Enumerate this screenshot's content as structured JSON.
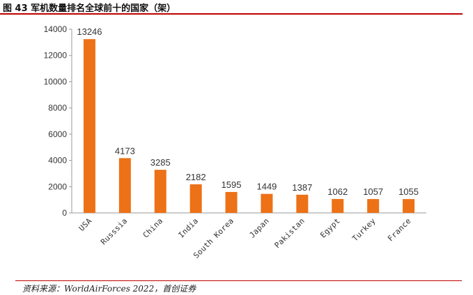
{
  "figure": {
    "title": "图 43 军机数量排名全球前十的国家（架）",
    "source": "资料来源：WorldAirForces 2022，首创证券",
    "rule_color": "#c00000"
  },
  "chart_data": {
    "type": "bar",
    "title": "图 43 军机数量排名全球前十的国家（架）",
    "xlabel": "",
    "ylabel": "",
    "categories": [
      "USA",
      "Russsia",
      "China",
      "India",
      "South Korea",
      "Japan",
      "Pakistan",
      "Egypt",
      "Turkey",
      "France"
    ],
    "values": [
      13246,
      4173,
      3285,
      2182,
      1595,
      1449,
      1387,
      1062,
      1057,
      1055
    ],
    "ylim": [
      0,
      14000
    ],
    "yticks": [
      0,
      2000,
      4000,
      6000,
      8000,
      10000,
      12000,
      14000
    ],
    "bar_color": "#ed7117",
    "grid": false,
    "legend": "none",
    "data_labels": true
  }
}
